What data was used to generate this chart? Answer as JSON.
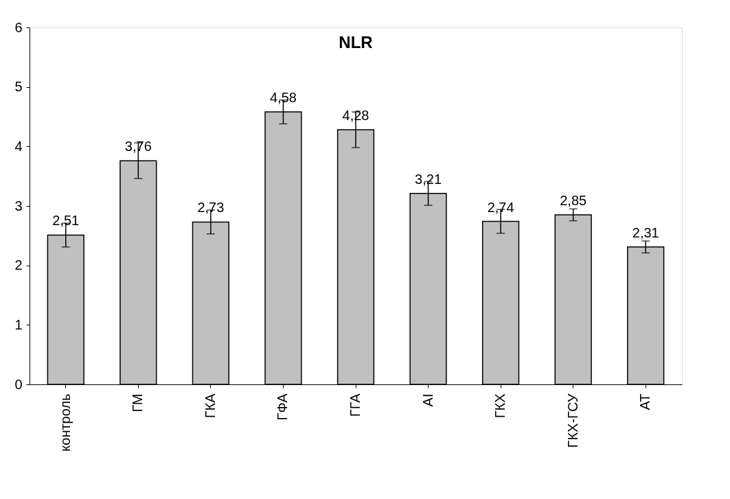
{
  "chart_data": {
    "type": "bar",
    "title": "NLR",
    "categories": [
      "контроль",
      "ГМ",
      "ГКА",
      "ГФА",
      "ГГА",
      "AI",
      "ГКХ",
      "ГКХ-ГСУ",
      "АТ"
    ],
    "values": [
      2.51,
      3.76,
      2.73,
      4.58,
      4.28,
      3.21,
      2.74,
      2.85,
      2.31
    ],
    "errors": [
      0.2,
      0.3,
      0.2,
      0.2,
      0.3,
      0.2,
      0.2,
      0.1,
      0.1
    ],
    "value_labels": [
      "2,51",
      "3,76",
      "2,73",
      "4,58",
      "4,28",
      "3,21",
      "2,74",
      "2,85",
      "2,31"
    ],
    "color": "#c0c0c0",
    "ylim": [
      0,
      6
    ],
    "yticks": [
      0,
      1,
      2,
      3,
      4,
      5,
      6
    ],
    "grid": false
  }
}
